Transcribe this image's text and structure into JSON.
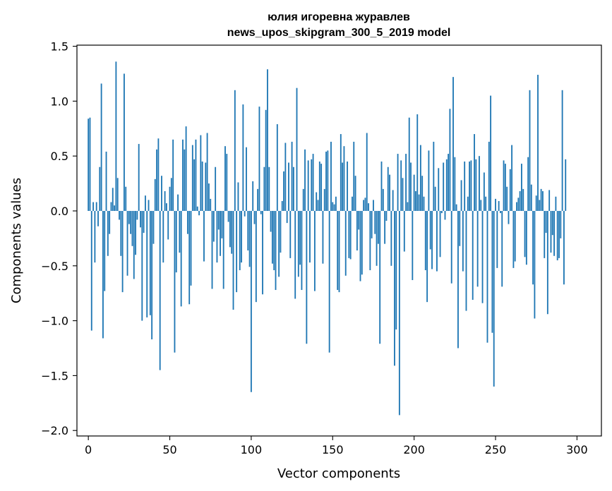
{
  "chart_data": {
    "type": "bar",
    "title": "юлия игоревна журавлев",
    "subtitle": "news_upos_skipgram_300_5_2019 model",
    "xlabel": "Vector components",
    "ylabel": "Components values",
    "xlim": [
      -7,
      315
    ],
    "ylim": [
      -2.05,
      1.51
    ],
    "xticks": [
      0,
      50,
      100,
      150,
      200,
      250,
      300
    ],
    "yticks": [
      -2.0,
      -1.5,
      -1.0,
      -0.5,
      0.0,
      0.5,
      1.0,
      1.5
    ],
    "ytick_labels": [
      "−2.0",
      "−1.5",
      "−1.0",
      "−0.5",
      "0.0",
      "0.5",
      "1.0",
      "1.5"
    ],
    "grid": false,
    "color": "#1f77b4",
    "values": [
      0.84,
      0.85,
      -1.09,
      0.08,
      -0.47,
      0.08,
      -0.14,
      0.4,
      1.16,
      -1.16,
      -0.73,
      0.54,
      -0.41,
      -0.21,
      0.08,
      0.21,
      0.05,
      1.36,
      0.3,
      -0.08,
      -0.41,
      -0.74,
      1.25,
      0.22,
      -0.59,
      -0.12,
      -0.21,
      -0.32,
      -0.62,
      -0.4,
      -0.08,
      0.61,
      -0.15,
      -1.0,
      -0.2,
      0.14,
      -0.97,
      0.1,
      -0.95,
      -1.17,
      -0.3,
      0.29,
      0.56,
      0.66,
      -1.45,
      0.32,
      -0.47,
      0.18,
      0.07,
      -0.26,
      0.22,
      0.3,
      0.65,
      -1.29,
      -0.56,
      0.15,
      -0.38,
      -0.87,
      0.65,
      0.56,
      0.77,
      -0.21,
      -0.85,
      -0.68,
      0.6,
      0.47,
      0.65,
      0.04,
      -0.04,
      0.69,
      0.45,
      -0.46,
      0.44,
      0.71,
      0.25,
      0.11,
      -0.71,
      -0.28,
      0.4,
      -0.47,
      -0.17,
      -0.41,
      -0.25,
      -0.71,
      0.59,
      0.52,
      -0.1,
      -0.33,
      -0.39,
      -0.9,
      1.1,
      -0.74,
      0.26,
      -0.54,
      -0.47,
      0.97,
      -0.05,
      0.58,
      -0.36,
      -0.51,
      -1.65,
      0.27,
      -0.12,
      -0.83,
      0.2,
      0.95,
      -0.03,
      -0.76,
      0.4,
      0.92,
      1.29,
      0.4,
      -0.19,
      -0.48,
      -0.54,
      -0.72,
      0.79,
      -0.6,
      -0.38,
      0.09,
      0.36,
      0.62,
      -0.11,
      0.44,
      -0.43,
      0.63,
      0.4,
      -0.8,
      1.12,
      -0.6,
      -0.49,
      -0.72,
      0.2,
      0.56,
      -1.21,
      0.46,
      -0.47,
      0.47,
      0.52,
      -0.73,
      0.17,
      0.1,
      0.45,
      0.43,
      -0.48,
      0.2,
      0.54,
      0.55,
      -1.29,
      0.63,
      0.08,
      0.06,
      0.13,
      -0.72,
      -0.74,
      0.7,
      0.44,
      0.59,
      -0.59,
      0.45,
      -0.43,
      -0.44,
      0.13,
      0.63,
      0.32,
      -0.36,
      -0.17,
      -0.64,
      -0.58,
      0.1,
      0.12,
      0.71,
      0.07,
      -0.54,
      -0.25,
      0.1,
      -0.21,
      -0.5,
      -0.3,
      -1.21,
      0.45,
      0.2,
      -0.3,
      -0.09,
      0.4,
      0.33,
      -0.5,
      0.19,
      -1.41,
      -1.08,
      0.52,
      -1.86,
      0.46,
      0.3,
      -0.37,
      0.52,
      0.08,
      0.85,
      0.44,
      -0.63,
      0.33,
      0.18,
      0.88,
      0.15,
      0.6,
      0.32,
      0.13,
      -0.54,
      -0.83,
      0.55,
      -0.35,
      -0.53,
      0.63,
      0.22,
      -0.55,
      0.39,
      -0.42,
      -0.02,
      0.44,
      -0.08,
      0.47,
      0.52,
      0.93,
      -0.66,
      1.22,
      0.49,
      0.06,
      -1.25,
      -0.32,
      0.28,
      -0.55,
      0.45,
      -0.91,
      0.13,
      0.45,
      0.46,
      -0.81,
      0.7,
      0.47,
      -0.69,
      0.5,
      0.1,
      -0.84,
      0.35,
      0.13,
      -1.2,
      0.63,
      1.05,
      -1.11,
      -1.6,
      0.11,
      -0.52,
      0.09,
      -0.02,
      -0.69,
      0.46,
      0.43,
      0.22,
      -0.12,
      0.38,
      0.6,
      -0.52,
      -0.46,
      0.08,
      0.12,
      0.18,
      0.43,
      0.2,
      -0.42,
      -0.49,
      0.49,
      1.1,
      0.24,
      -0.67,
      -0.98,
      0.14,
      1.24,
      0.1,
      0.2,
      0.18,
      -0.43,
      -0.2,
      -0.94,
      0.19,
      -0.38,
      -0.22,
      -0.41,
      0.13,
      -0.45,
      -0.43,
      -0.25,
      1.1,
      -0.67,
      0.47
    ]
  }
}
